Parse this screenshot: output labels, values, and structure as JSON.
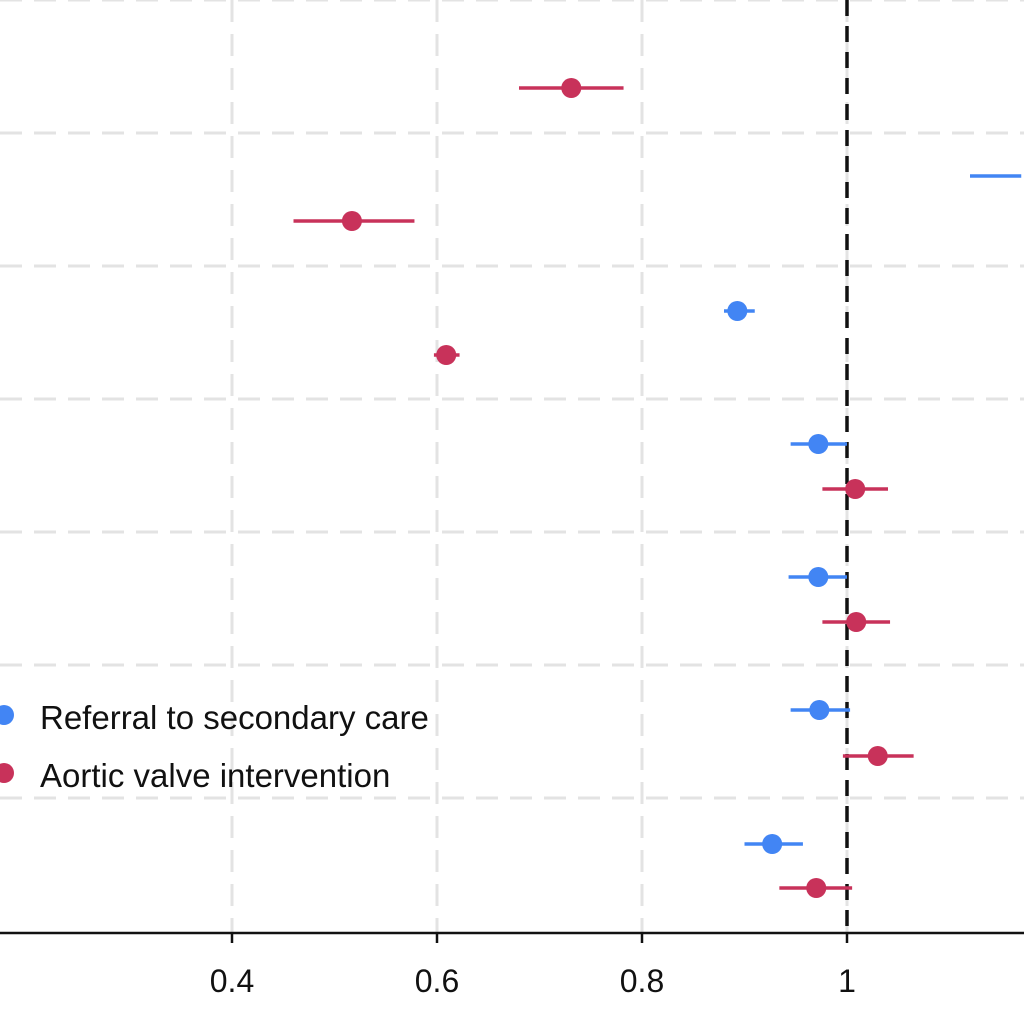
{
  "chart_data": {
    "type": "scatter",
    "subtype": "forest-plot",
    "xlim": [
      0.2,
      1.17
    ],
    "x_ticks": [
      {
        "value": 0.4,
        "label": "0.4"
      },
      {
        "value": 0.6,
        "label": "0.6"
      },
      {
        "value": 0.8,
        "label": "0.8"
      },
      {
        "value": 1.0,
        "label": "1"
      }
    ],
    "reference_line": 1.0,
    "grid": true,
    "legend_position": "bottom-left",
    "rows": 7,
    "series": [
      {
        "name": "Referral to secondary care",
        "color": "#4285F4",
        "points": [
          {
            "row": 1,
            "estimate": null,
            "lower": 1.12,
            "upper": 1.17
          },
          {
            "row": 2,
            "estimate": 0.893,
            "lower": 0.88,
            "upper": 0.91
          },
          {
            "row": 3,
            "estimate": 0.972,
            "lower": 0.945,
            "upper": 1.0
          },
          {
            "row": 4,
            "estimate": 0.972,
            "lower": 0.943,
            "upper": 1.0
          },
          {
            "row": 5,
            "estimate": 0.973,
            "lower": 0.945,
            "upper": 1.003
          },
          {
            "row": 6,
            "estimate": 0.927,
            "lower": 0.9,
            "upper": 0.957
          }
        ]
      },
      {
        "name": "Aortic valve intervention",
        "color": "#C8325A",
        "points": [
          {
            "row": 0,
            "estimate": 0.731,
            "lower": 0.68,
            "upper": 0.782
          },
          {
            "row": 1,
            "estimate": 0.517,
            "lower": 0.46,
            "upper": 0.578
          },
          {
            "row": 2,
            "estimate": 0.609,
            "lower": 0.597,
            "upper": 0.622
          },
          {
            "row": 3,
            "estimate": 1.008,
            "lower": 0.976,
            "upper": 1.04
          },
          {
            "row": 4,
            "estimate": 1.009,
            "lower": 0.976,
            "upper": 1.042
          },
          {
            "row": 5,
            "estimate": 1.03,
            "lower": 0.996,
            "upper": 1.065
          },
          {
            "row": 6,
            "estimate": 0.97,
            "lower": 0.934,
            "upper": 1.005
          }
        ]
      }
    ]
  }
}
